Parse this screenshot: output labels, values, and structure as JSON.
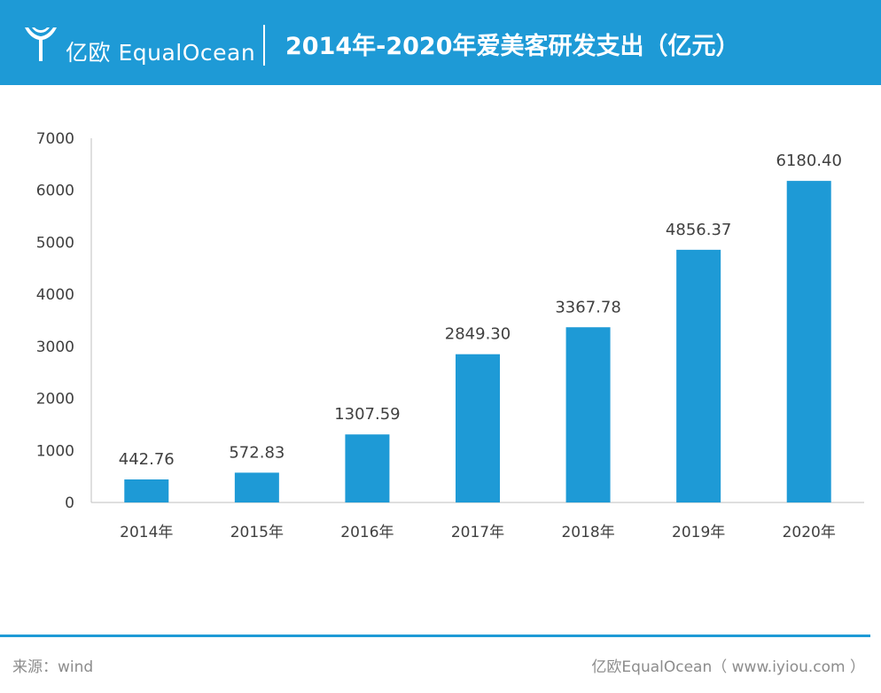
{
  "header": {
    "brand": "亿欧 EqualOcean",
    "title": "2014年-2020年爱美客研发支出（亿元）"
  },
  "colors": {
    "header_bg": "#1e9ad6",
    "bar": "#1e9ad6",
    "axis": "#bfbfbf",
    "text": "#404040",
    "footer_text": "#8c8c8c"
  },
  "chart_data": {
    "type": "bar",
    "title": "2014年-2020年爱美客研发支出（亿元）",
    "categories": [
      "2014年",
      "2015年",
      "2016年",
      "2017年",
      "2018年",
      "2019年",
      "2020年"
    ],
    "values": [
      442.76,
      572.83,
      1307.59,
      2849.3,
      3367.78,
      4856.37,
      6180.4
    ],
    "value_labels": [
      "442.76",
      "572.83",
      "1307.59",
      "2849.30",
      "3367.78",
      "4856.37",
      "6180.40"
    ],
    "yticks": [
      "0",
      "1000",
      "2000",
      "3000",
      "4000",
      "5000",
      "6000",
      "7000"
    ],
    "ylim": [
      0,
      7000
    ],
    "xlabel": "",
    "ylabel": "",
    "grid": false,
    "legend": "none"
  },
  "footer": {
    "source": "来源：wind",
    "credit": "亿欧EqualOcean（ www.iyiou.com ）"
  }
}
